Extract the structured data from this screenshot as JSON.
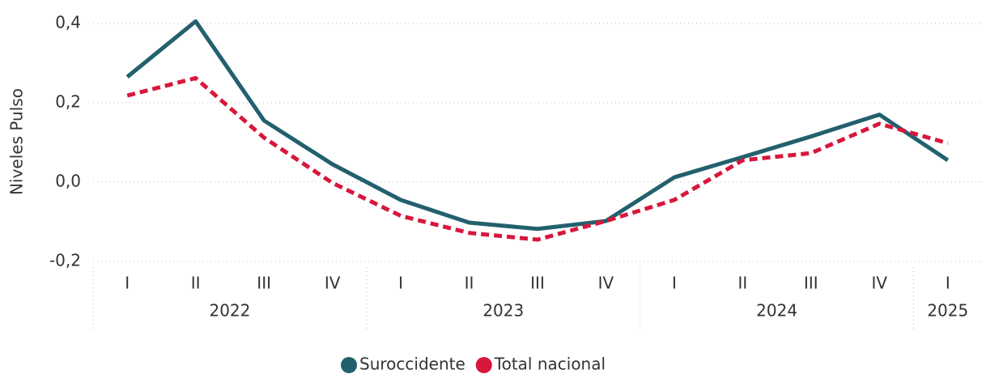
{
  "chart_data": {
    "type": "line",
    "y_label": "Niveles Pulso",
    "groups": [
      {
        "label": "2022",
        "categories": [
          "I",
          "II",
          "III",
          "IV"
        ]
      },
      {
        "label": "2023",
        "categories": [
          "I",
          "II",
          "III",
          "IV"
        ]
      },
      {
        "label": "2024",
        "categories": [
          "I",
          "II",
          "III",
          "IV"
        ]
      },
      {
        "label": "2025",
        "categories": [
          "I"
        ]
      }
    ],
    "series": [
      {
        "name": "Suroccidente",
        "color": "#23606e",
        "dashed": false,
        "values": [
          0.265,
          0.405,
          0.155,
          0.045,
          -0.045,
          -0.102,
          -0.118,
          -0.098,
          0.012,
          0.063,
          0.115,
          0.17,
          0.055
        ]
      },
      {
        "name": "Total nacional",
        "color": "#d7173b",
        "dashed": true,
        "values": [
          0.218,
          0.262,
          0.112,
          -0.002,
          -0.085,
          -0.128,
          -0.145,
          -0.098,
          -0.045,
          0.055,
          0.073,
          0.147,
          0.098
        ]
      }
    ],
    "ylim": [
      -0.2,
      0.42
    ],
    "yticks": [
      {
        "value": -0.2,
        "label": "-0,2"
      },
      {
        "value": 0,
        "label": "0,0"
      },
      {
        "value": 0.2,
        "label": "0,2"
      },
      {
        "value": 0.4,
        "label": "0,4"
      }
    ],
    "grid": true
  }
}
